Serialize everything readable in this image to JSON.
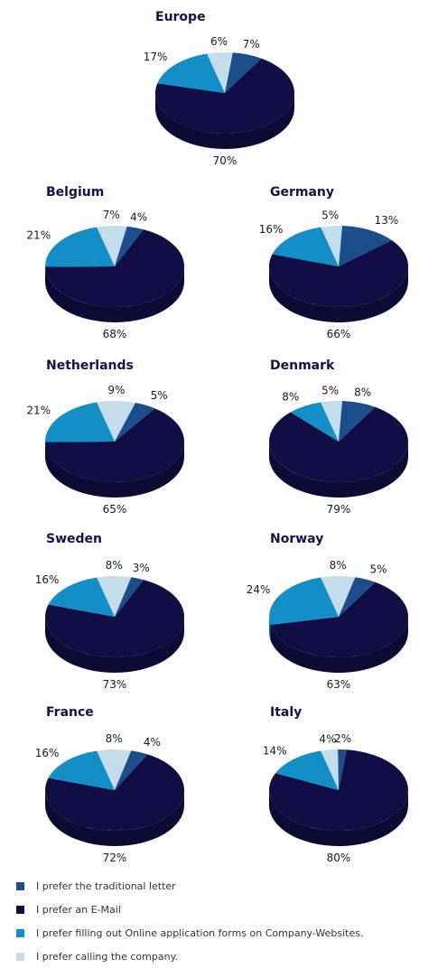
{
  "colors": {
    "letter": "#1d4e8c",
    "email": "#100e45",
    "forms": "#138ec7",
    "calling": "#c4dceb"
  },
  "legend": [
    {
      "key": "letter",
      "label": "I prefer the traditional letter"
    },
    {
      "key": "email",
      "label": "I prefer an E-Mail"
    },
    {
      "key": "forms",
      "label": "I prefer filling out Online application forms on Company-Websites."
    },
    {
      "key": "calling",
      "label": "I prefer calling the company."
    }
  ],
  "chart_data": [
    {
      "type": "pie",
      "title": "Europe",
      "labels": [
        "letter",
        "email",
        "forms",
        "calling"
      ],
      "values": [
        7,
        70,
        17,
        6
      ]
    },
    {
      "type": "pie",
      "title": "Belgium",
      "labels": [
        "letter",
        "email",
        "forms",
        "calling"
      ],
      "values": [
        4,
        68,
        21,
        7
      ]
    },
    {
      "type": "pie",
      "title": "Germany",
      "labels": [
        "letter",
        "email",
        "forms",
        "calling"
      ],
      "values": [
        13,
        66,
        16,
        5
      ]
    },
    {
      "type": "pie",
      "title": "Netherlands",
      "labels": [
        "letter",
        "email",
        "forms",
        "calling"
      ],
      "values": [
        5,
        65,
        21,
        9
      ]
    },
    {
      "type": "pie",
      "title": "Denmark",
      "labels": [
        "letter",
        "email",
        "forms",
        "calling"
      ],
      "values": [
        8,
        79,
        8,
        5
      ]
    },
    {
      "type": "pie",
      "title": "Sweden",
      "labels": [
        "letter",
        "email",
        "forms",
        "calling"
      ],
      "values": [
        3,
        73,
        16,
        8
      ]
    },
    {
      "type": "pie",
      "title": "Norway",
      "labels": [
        "letter",
        "email",
        "forms",
        "calling"
      ],
      "values": [
        5,
        63,
        24,
        8
      ]
    },
    {
      "type": "pie",
      "title": "France",
      "labels": [
        "letter",
        "email",
        "forms",
        "calling"
      ],
      "values": [
        4,
        72,
        16,
        8
      ]
    },
    {
      "type": "pie",
      "title": "Italy",
      "labels": [
        "letter",
        "email",
        "forms",
        "calling"
      ],
      "values": [
        2,
        80,
        14,
        4
      ]
    }
  ]
}
